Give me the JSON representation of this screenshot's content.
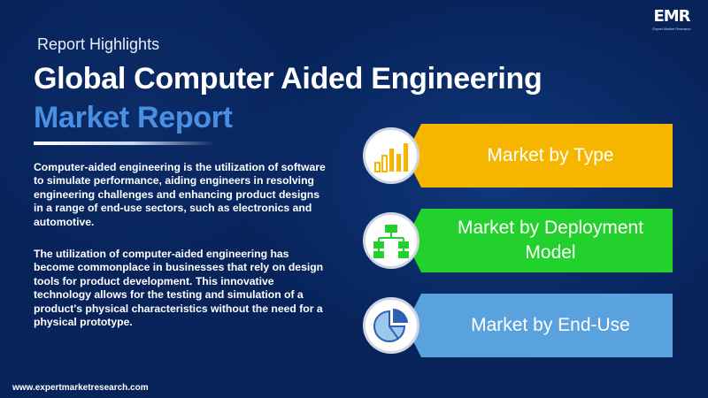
{
  "header": {
    "kicker": "Report Highlights",
    "title_line1": "Global Computer Aided Engineering",
    "title_line2": "Market Report"
  },
  "logo": {
    "mark": "EMR",
    "tagline": "Expert Market Research"
  },
  "description": {
    "paragraph1": "Computer-aided engineering is the utilization of software to simulate performance, aiding engineers in resolving engineering challenges and enhancing product designs in a range of end-use sectors, such as electronics and automotive.",
    "paragraph2": "The utilization of computer-aided engineering has become commonplace in businesses that rely on design tools for product development. This innovative technology allows for the testing and simulation of a product's physical characteristics without the need for a physical prototype."
  },
  "segments": [
    {
      "label": "Market by Type",
      "icon": "bar-chart-icon",
      "color": "#f6b600"
    },
    {
      "label": "Market by Deployment Model",
      "icon": "org-chart-icon",
      "color": "#22d12b"
    },
    {
      "label": "Market by End-Use",
      "icon": "pie-chart-icon",
      "color": "#5aa2dd"
    }
  ],
  "footer": {
    "url": "www.expertmarketresearch.com"
  },
  "colors": {
    "background": "#07235a",
    "title_accent": "#4a90e2",
    "icon_color": "#f6b600"
  }
}
